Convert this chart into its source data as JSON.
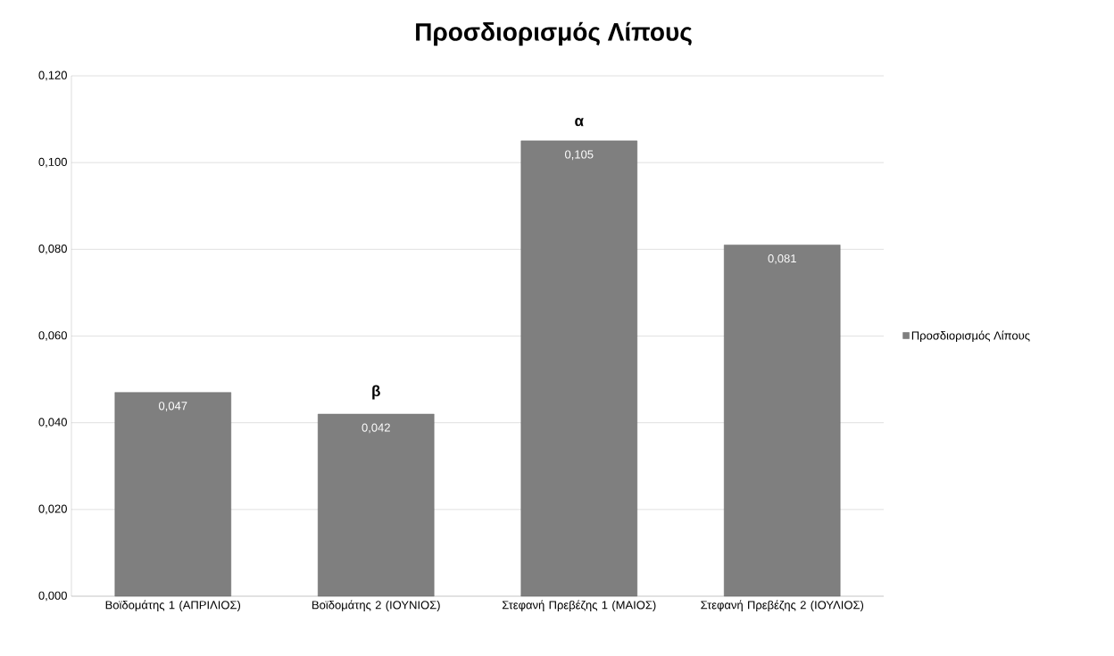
{
  "chart_data": {
    "type": "bar",
    "title": "Προσδιορισμός Λίπους",
    "categories": [
      "Βοϊδομάτης 1 (ΑΠΡΙΛΙΟΣ)",
      "Βοϊδομάτης 2 (ΙΟΥΝΙΟΣ)",
      "Στεφανή Πρεβέζης 1 (ΜΑΙΟΣ)",
      "Στεφανή Πρεβέζης 2 (ΙΟΥΛΙΟΣ)"
    ],
    "series": [
      {
        "name": "Προσδιορισμός Λίπους",
        "color": "#7f7f7f",
        "values": [
          0.047,
          0.042,
          0.105,
          0.081
        ],
        "value_labels": [
          "0,047",
          "0,042",
          "0,105",
          "0,081"
        ]
      }
    ],
    "ylim": [
      0,
      0.12
    ],
    "yticks": [
      {
        "value": 0,
        "label": "0,000"
      },
      {
        "value": 0.02,
        "label": "0,020"
      },
      {
        "value": 0.04,
        "label": "0,040"
      },
      {
        "value": 0.06,
        "label": "0,060"
      },
      {
        "value": 0.08,
        "label": "0,080"
      },
      {
        "value": 0.1,
        "label": "0,100"
      },
      {
        "value": 0.12,
        "label": "0,120"
      }
    ],
    "grid": "y",
    "legend": "right",
    "annotations": [
      {
        "text": "β",
        "x": "Βοϊδομάτης 2 (ΙΟΥΝΙΟΣ)",
        "y": 0.042
      },
      {
        "text": "α",
        "x": "Στεφανή Πρεβέζης 1 (ΜΑΙΟΣ)",
        "y": 0.105
      }
    ]
  }
}
